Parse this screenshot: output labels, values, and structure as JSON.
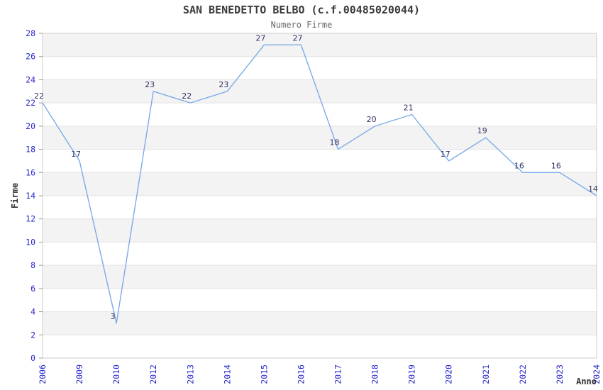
{
  "chart_data": {
    "type": "line",
    "title": "SAN BENEDETTO BELBO (c.f.00485020044)",
    "subtitle": "Numero Firme",
    "xlabel": "Anno",
    "ylabel": "Firme",
    "categories": [
      "2006",
      "2009",
      "2010",
      "2012",
      "2013",
      "2014",
      "2015",
      "2016",
      "2017",
      "2018",
      "2019",
      "2020",
      "2021",
      "2022",
      "2023",
      "2024"
    ],
    "values": [
      22,
      17,
      3,
      23,
      22,
      23,
      27,
      27,
      18,
      20,
      21,
      17,
      19,
      16,
      16,
      14
    ],
    "ylim": [
      0,
      28
    ],
    "ytick_step": 2,
    "yticks": [
      0,
      2,
      4,
      6,
      8,
      10,
      12,
      14,
      16,
      18,
      20,
      22,
      24,
      26,
      28
    ],
    "grid": "horizontal gridlines every 2 units with alternating shaded bands",
    "legend": "none",
    "point_markers": "none",
    "data_labels": "shown above-left of each point",
    "colors": {
      "line": "#7dabe8",
      "tick_label": "#2929cf",
      "data_label": "#333366",
      "band_fill": "#f3f3f3",
      "gridline": "#e3e3e3",
      "plot_border": "#cccccc",
      "tick_mark": "#999999",
      "title": "#3a3a3a",
      "subtitle": "#686868",
      "axis_label": "#333333",
      "background": "#ffffff"
    }
  }
}
